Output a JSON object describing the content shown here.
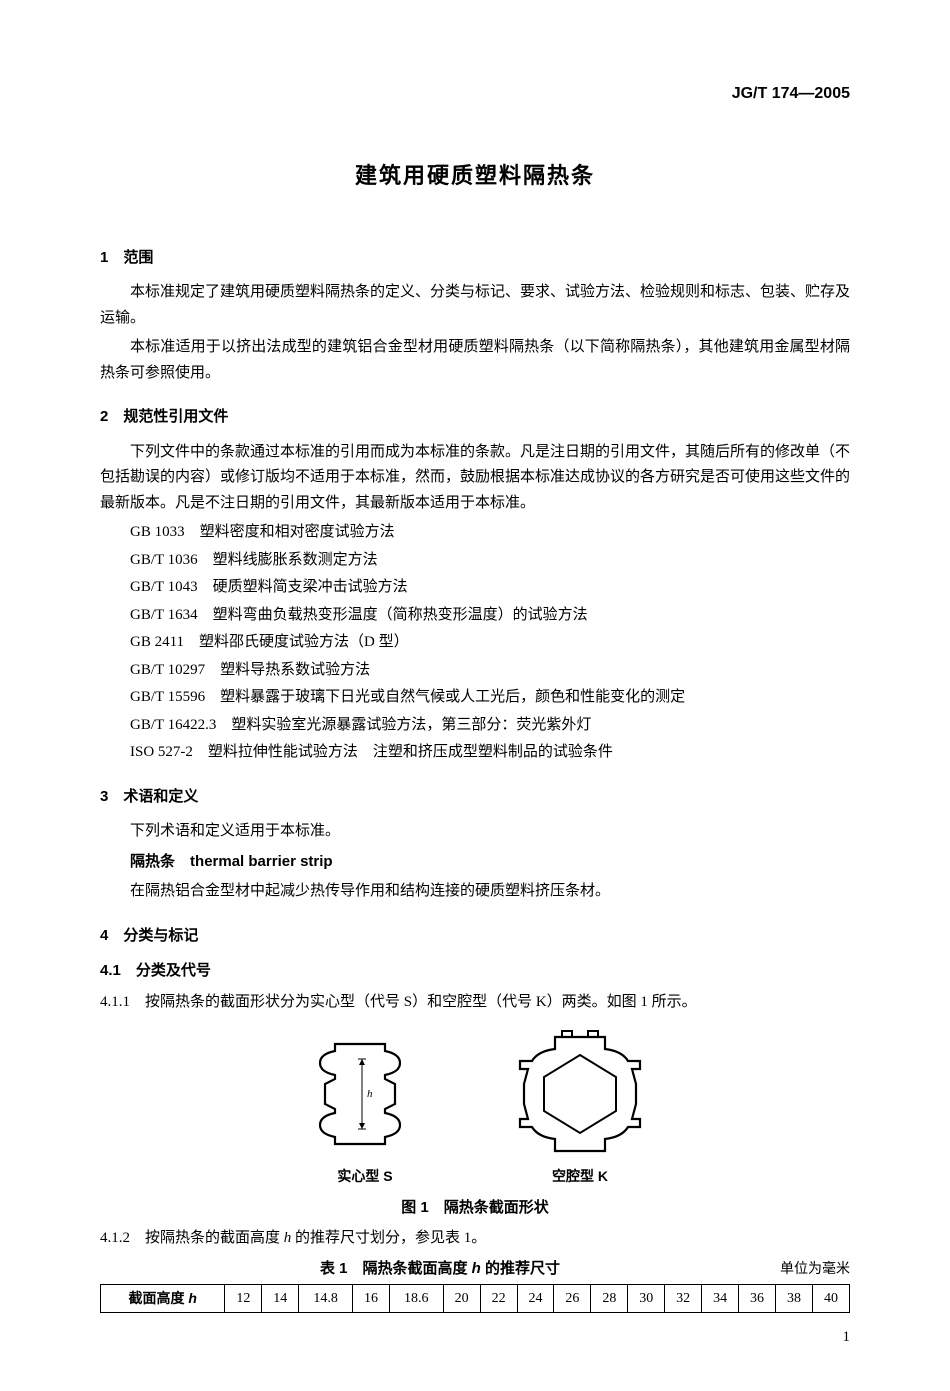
{
  "doc_number": "JG/T 174—2005",
  "doc_title": "建筑用硬质塑料隔热条",
  "sections": {
    "s1": {
      "num": "1",
      "title": "范围"
    },
    "s2": {
      "num": "2",
      "title": "规范性引用文件"
    },
    "s3": {
      "num": "3",
      "title": "术语和定义"
    },
    "s4": {
      "num": "4",
      "title": "分类与标记"
    },
    "s4_1": {
      "num": "4.1",
      "title": "分类及代号"
    }
  },
  "paras": {
    "p1a": "本标准规定了建筑用硬质塑料隔热条的定义、分类与标记、要求、试验方法、检验规则和标志、包装、贮存及运输。",
    "p1b": "本标准适用于以挤出法成型的建筑铝合金型材用硬质塑料隔热条（以下简称隔热条），其他建筑用金属型材隔热条可参照使用。",
    "p2a": "下列文件中的条款通过本标准的引用而成为本标准的条款。凡是注日期的引用文件，其随后所有的修改单（不包括勘误的内容）或修订版均不适用于本标准，然而，鼓励根据本标准达成协议的各方研究是否可使用这些文件的最新版本。凡是不注日期的引用文件，其最新版本适用于本标准。",
    "p3a": "下列术语和定义适用于本标准。",
    "p411": "4.1.1　按隔热条的截面形状分为实心型（代号 S）和空腔型（代号 K）两类。如图 1 所示。",
    "p412_pre": "4.1.2　按隔热条的截面高度 ",
    "p412_post": " 的推荐尺寸划分，参见表 1。"
  },
  "refs": [
    "GB 1033　塑料密度和相对密度试验方法",
    "GB/T 1036　塑料线膨胀系数测定方法",
    "GB/T 1043　硬质塑料简支梁冲击试验方法",
    "GB/T 1634　塑料弯曲负载热变形温度（简称热变形温度）的试验方法",
    "GB 2411　塑料邵氏硬度试验方法（D 型）",
    "GB/T 10297　塑料导热系数试验方法",
    "GB/T 15596　塑料暴露于玻璃下日光或自然气候或人工光后，颜色和性能变化的测定",
    "GB/T 16422.3　塑料实验室光源暴露试验方法，第三部分：荧光紫外灯",
    "ISO 527-2　塑料拉伸性能试验方法　注塑和挤压成型塑料制品的试验条件"
  ],
  "term": {
    "cn": "隔热条",
    "en": "thermal barrier strip",
    "def": "在隔热铝合金型材中起减少热传导作用和结构连接的硬质塑料挤压条材。"
  },
  "figure": {
    "label_s": "实心型 S",
    "label_k": "空腔型 K",
    "caption": "图 1　隔热条截面形状"
  },
  "table1": {
    "caption_pre": "表 1　隔热条截面高度 ",
    "caption_post": " 的推荐尺寸",
    "unit": "单位为毫米",
    "row_head_pre": "截面高度 ",
    "values": [
      "12",
      "14",
      "14.8",
      "16",
      "18.6",
      "20",
      "22",
      "24",
      "26",
      "28",
      "30",
      "32",
      "34",
      "36",
      "38",
      "40"
    ]
  },
  "page_number": "1",
  "h_symbol": "h"
}
